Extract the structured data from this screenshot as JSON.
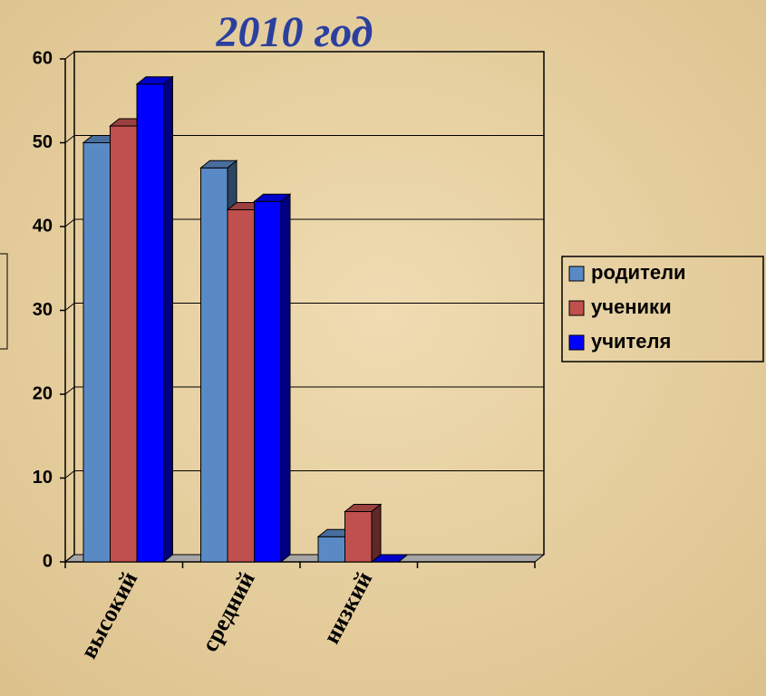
{
  "chart_data": {
    "type": "bar3d",
    "title": "2010 год",
    "categories": [
      "высокий",
      "средний",
      "низкий",
      null
    ],
    "series": [
      {
        "name": "родители",
        "color": "#5a8ac6",
        "values": [
          50,
          47,
          3,
          null
        ]
      },
      {
        "name": "ученики",
        "color": "#c0504d",
        "values": [
          52,
          42,
          6,
          null
        ]
      },
      {
        "name": "учителя",
        "color": "#0000ff",
        "values": [
          57,
          43,
          0,
          null
        ]
      }
    ],
    "ylim": [
      0,
      60
    ],
    "yticks": [
      0,
      10,
      20,
      30,
      40,
      50,
      60
    ],
    "grid": true,
    "legend": "right"
  }
}
